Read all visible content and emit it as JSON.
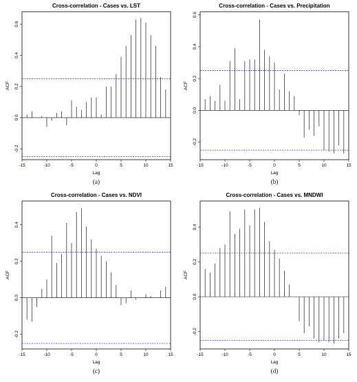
{
  "chart_data": [
    {
      "type": "bar",
      "panel_label": "(a)",
      "title": "Cross-correlation - Cases vs. LST",
      "xlabel": "Lag",
      "ylabel": "ACF",
      "xlim": [
        -15,
        15
      ],
      "ylim": [
        -0.27,
        0.68
      ],
      "xticks": [
        -15,
        -10,
        -5,
        0,
        5,
        10,
        15
      ],
      "yticks": [
        -0.2,
        0.0,
        0.2,
        0.4,
        0.6
      ],
      "confidence_band": 0.25,
      "x": [
        -14,
        -13,
        -12,
        -11,
        -10,
        -9,
        -8,
        -7,
        -6,
        -5,
        -4,
        -3,
        -2,
        -1,
        0,
        1,
        2,
        3,
        4,
        5,
        6,
        7,
        8,
        9,
        10,
        11,
        12,
        13,
        14
      ],
      "values": [
        0.02,
        0.04,
        0.0,
        0.01,
        -0.06,
        -0.02,
        0.03,
        0.04,
        -0.05,
        0.11,
        0.07,
        0.05,
        0.1,
        0.13,
        0.13,
        0.02,
        0.2,
        0.2,
        0.28,
        0.39,
        0.46,
        0.53,
        0.63,
        0.64,
        0.61,
        0.53,
        0.46,
        0.26,
        0.18
      ],
      "grid": false
    },
    {
      "type": "bar",
      "panel_label": "(b)",
      "title": "Cross-correlation - Cases vs. Precipitation",
      "xlabel": "Lag",
      "ylabel": "ACF",
      "xlim": [
        -15,
        15
      ],
      "ylim": [
        -0.31,
        0.62
      ],
      "xticks": [
        -15,
        -10,
        -5,
        0,
        5,
        10,
        15
      ],
      "yticks": [
        -0.2,
        0.0,
        0.2,
        0.4,
        0.6
      ],
      "confidence_band": 0.25,
      "x": [
        -14,
        -13,
        -12,
        -11,
        -10,
        -9,
        -8,
        -7,
        -6,
        -5,
        -4,
        -3,
        -2,
        -1,
        0,
        1,
        2,
        3,
        4,
        5,
        6,
        7,
        8,
        9,
        10,
        11,
        12,
        13,
        14
      ],
      "values": [
        0.07,
        0.09,
        0.06,
        0.16,
        0.06,
        0.31,
        0.39,
        0.07,
        0.31,
        0.32,
        0.32,
        0.57,
        0.38,
        0.34,
        0.3,
        0.13,
        0.23,
        0.12,
        0.09,
        -0.03,
        -0.17,
        -0.12,
        -0.16,
        -0.1,
        -0.25,
        -0.26,
        -0.27,
        -0.22,
        -0.27
      ],
      "grid": false
    },
    {
      "type": "bar",
      "panel_label": "(c)",
      "title": "Cross-correlation - Cases vs. NDVI",
      "xlabel": "Lag",
      "ylabel": "ACF",
      "xlim": [
        -15,
        15
      ],
      "ylim": [
        -0.28,
        0.53
      ],
      "xticks": [
        -15,
        -10,
        -5,
        0,
        5,
        10,
        15
      ],
      "yticks": [
        -0.2,
        0.0,
        0.2,
        0.4
      ],
      "confidence_band": 0.25,
      "x": [
        -14,
        -13,
        -12,
        -11,
        -10,
        -9,
        -8,
        -7,
        -6,
        -5,
        -4,
        -3,
        -2,
        -1,
        0,
        1,
        2,
        3,
        4,
        5,
        6,
        7,
        8,
        9,
        10,
        11,
        12,
        13,
        14
      ],
      "values": [
        -0.12,
        -0.13,
        -0.05,
        0.05,
        0.1,
        0.34,
        0.19,
        0.24,
        0.41,
        0.3,
        0.47,
        0.49,
        0.39,
        0.32,
        0.27,
        0.23,
        0.2,
        0.14,
        0.07,
        -0.04,
        -0.03,
        0.04,
        -0.01,
        0.0,
        0.02,
        0.01,
        0.0,
        0.04,
        0.06
      ],
      "grid": false
    },
    {
      "type": "bar",
      "panel_label": "(d)",
      "title": "Cross-correlation - Cases vs. MNDWI",
      "xlabel": "Lag",
      "ylabel": "ACF",
      "xlim": [
        -15,
        15
      ],
      "ylim": [
        -0.3,
        0.55
      ],
      "xticks": [
        -15,
        -10,
        -5,
        0,
        5,
        10,
        15
      ],
      "yticks": [
        -0.2,
        0.0,
        0.2,
        0.4
      ],
      "confidence_band": 0.25,
      "x": [
        -14,
        -13,
        -12,
        -11,
        -10,
        -9,
        -8,
        -7,
        -6,
        -5,
        -4,
        -3,
        -2,
        -1,
        0,
        1,
        2,
        3,
        4,
        5,
        6,
        7,
        8,
        9,
        10,
        11,
        12,
        13,
        14
      ],
      "values": [
        0.16,
        0.14,
        0.19,
        0.28,
        0.3,
        0.49,
        0.36,
        0.39,
        0.5,
        0.41,
        0.5,
        0.51,
        0.43,
        0.32,
        0.27,
        0.22,
        0.15,
        0.07,
        0.0,
        -0.14,
        -0.21,
        -0.17,
        -0.24,
        -0.26,
        -0.25,
        -0.26,
        -0.27,
        -0.24,
        -0.21
      ],
      "grid": false
    }
  ],
  "colors": {
    "bars": "#333333",
    "axes": "#000000",
    "confidence_band": "#3333dd"
  }
}
